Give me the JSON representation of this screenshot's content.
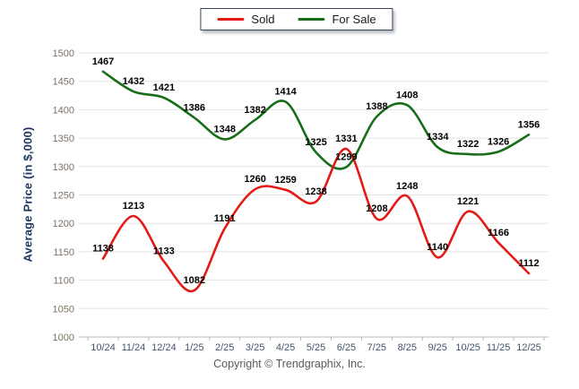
{
  "legend": {
    "items": [
      {
        "label": "Sold",
        "color": "#e31b17"
      },
      {
        "label": "For Sale",
        "color": "#176e17"
      }
    ]
  },
  "footer": {
    "copyright": "Copyright © Trendgraphix, Inc."
  },
  "chart_data": {
    "type": "line",
    "title": "",
    "xlabel": "",
    "ylabel": "Average Price (in $,000)",
    "categories": [
      "10/24",
      "11/24",
      "12/24",
      "1/25",
      "2/25",
      "3/25",
      "4/25",
      "5/25",
      "6/25",
      "7/25",
      "8/25",
      "9/25",
      "10/25",
      "11/25",
      "12/25"
    ],
    "series": [
      {
        "name": "Sold",
        "color": "#e31b17",
        "values": [
          1138,
          1213,
          1133,
          1082,
          1191,
          1260,
          1259,
          1238,
          1331,
          1208,
          1248,
          1140,
          1221,
          1166,
          1112
        ]
      },
      {
        "name": "For Sale",
        "color": "#176e17",
        "values": [
          1467,
          1432,
          1421,
          1386,
          1348,
          1382,
          1414,
          1325,
          1299,
          1388,
          1408,
          1334,
          1322,
          1326,
          1356
        ]
      }
    ],
    "ylim": [
      1000,
      1500
    ],
    "ytick_step": 50,
    "grid": true,
    "smooth": true,
    "data_labels": true,
    "legend_position": "top-center"
  },
  "colors": {
    "gridline": "#e4e4e4",
    "axis_line": "#b8b8b8",
    "x_tick_label": "#44546a",
    "y_tick_label": "#7c7263",
    "data_label": "#000000",
    "axis_title": "#1f3864",
    "copyright": "#595959",
    "background": "#ffffff"
  }
}
